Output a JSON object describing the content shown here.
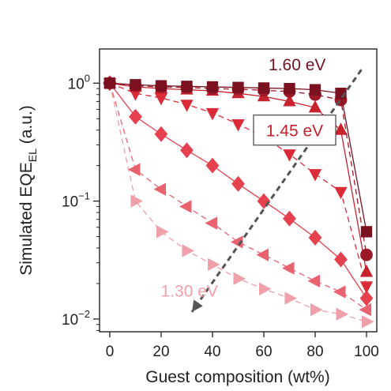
{
  "chart_data": {
    "type": "line",
    "xlabel": "Guest composition (wt%)",
    "ylabel": "Simulated EQE",
    "ylabel_sub": "EL",
    "ylabel_unit": " (a.u.)",
    "x": [
      0,
      10,
      20,
      30,
      40,
      50,
      60,
      70,
      80,
      90,
      100
    ],
    "xticks": [
      "0",
      "20",
      "40",
      "60",
      "80",
      "100"
    ],
    "xtick_values": [
      0,
      20,
      40,
      60,
      80,
      100
    ],
    "xlim": [
      -4,
      104
    ],
    "y_scale": "log",
    "ylim": [
      0.0078,
      1.95
    ],
    "yticks": [
      {
        "base": "10",
        "exp": "0",
        "value": 1
      },
      {
        "base": "10",
        "exp": "−1",
        "value": 0.1
      },
      {
        "base": "10",
        "exp": "−2",
        "value": 0.01
      }
    ],
    "series": [
      {
        "marker": "square",
        "color": "#7a1020",
        "dash": false,
        "values": [
          1,
          0.97,
          0.95,
          0.94,
          0.93,
          0.92,
          0.91,
          0.9,
          0.88,
          0.82,
          0.055
        ]
      },
      {
        "marker": "circle",
        "color": "#9c1a28",
        "dash": true,
        "values": [
          1,
          0.95,
          0.93,
          0.92,
          0.9,
          0.89,
          0.87,
          0.85,
          0.8,
          0.72,
          0.035
        ]
      },
      {
        "marker": "triangle-up",
        "color": "#c8222f",
        "dash": false,
        "values": [
          1,
          0.93,
          0.9,
          0.88,
          0.86,
          0.82,
          0.77,
          0.7,
          0.62,
          0.4,
          0.025
        ]
      },
      {
        "marker": "triangle-down",
        "color": "#dc2b38",
        "dash": true,
        "values": [
          1,
          0.82,
          0.75,
          0.66,
          0.56,
          0.45,
          0.35,
          0.25,
          0.17,
          0.12,
          0.019
        ]
      },
      {
        "marker": "diamond",
        "color": "#e5414f",
        "dash": false,
        "values": [
          1,
          0.52,
          0.37,
          0.27,
          0.2,
          0.14,
          0.1,
          0.071,
          0.049,
          0.032,
          0.015
        ]
      },
      {
        "marker": "triangle-left",
        "color": "#e86270",
        "dash": true,
        "values": [
          1,
          0.185,
          0.126,
          0.09,
          0.065,
          0.045,
          0.035,
          0.027,
          0.021,
          0.017,
          0.012
        ]
      },
      {
        "marker": "triangle-right",
        "color": "#f0a0a8",
        "dash": true,
        "values": [
          1,
          0.1,
          0.055,
          0.038,
          0.029,
          0.022,
          0.018,
          0.015,
          0.012,
          0.011,
          0.0095
        ]
      }
    ],
    "annotations": [
      {
        "text": "1.60 eV",
        "color": "#6e1420",
        "x": 73,
        "y": 1.45,
        "boxed": false
      },
      {
        "text": "1.45 eV",
        "color": "#c8222f",
        "x": 72,
        "y": 0.4,
        "boxed": true
      },
      {
        "text": "1.30 eV",
        "color": "#f0a0a8",
        "x": 31,
        "y": 0.0175,
        "boxed": false
      }
    ],
    "arrow": {
      "color": "#555555",
      "from": [
        98,
        1.3
      ],
      "to": [
        32,
        0.0115
      ]
    },
    "grid": false,
    "legend": "none"
  }
}
